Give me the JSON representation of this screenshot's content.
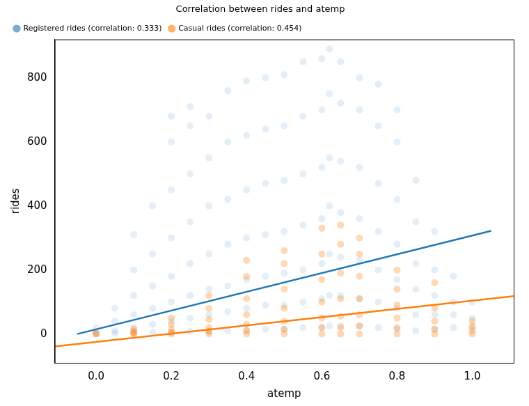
{
  "chart_data": {
    "type": "scatter",
    "title": "Correlation between rides and atemp",
    "x_label": "atemp",
    "y_label": "rides",
    "xlim": [
      -0.11,
      1.11
    ],
    "xticks": [
      {
        "value": 0,
        "label": "0.0"
      },
      0.2,
      0.4,
      0.6,
      0.8,
      {
        "value": 1,
        "label": "1.0"
      }
    ],
    "ylim": [
      -90,
      920
    ],
    "yticks": [
      0,
      200,
      400,
      600,
      800
    ],
    "grid": false,
    "legend": "upper left",
    "series": [
      {
        "name": "Registered rides (correlation: 0.333)",
        "color": "#1f77b4",
        "marker": "circle",
        "x": [
          0.0,
          0.0,
          0.0,
          0.05,
          0.05,
          0.05,
          0.05,
          0.1,
          0.1,
          0.1,
          0.1,
          0.1,
          0.1,
          0.15,
          0.15,
          0.15,
          0.15,
          0.15,
          0.15,
          0.2,
          0.2,
          0.2,
          0.2,
          0.2,
          0.2,
          0.2,
          0.2,
          0.25,
          0.25,
          0.25,
          0.25,
          0.25,
          0.25,
          0.25,
          0.25,
          0.3,
          0.3,
          0.3,
          0.3,
          0.3,
          0.3,
          0.3,
          0.35,
          0.35,
          0.35,
          0.35,
          0.35,
          0.35,
          0.35,
          0.4,
          0.4,
          0.4,
          0.4,
          0.4,
          0.4,
          0.4,
          0.45,
          0.45,
          0.45,
          0.45,
          0.45,
          0.45,
          0.45,
          0.5,
          0.5,
          0.5,
          0.5,
          0.5,
          0.5,
          0.5,
          0.55,
          0.55,
          0.55,
          0.55,
          0.55,
          0.55,
          0.55,
          0.6,
          0.6,
          0.6,
          0.6,
          0.6,
          0.6,
          0.6,
          0.62,
          0.62,
          0.62,
          0.62,
          0.62,
          0.62,
          0.62,
          0.65,
          0.65,
          0.65,
          0.65,
          0.65,
          0.65,
          0.65,
          0.7,
          0.7,
          0.7,
          0.7,
          0.7,
          0.7,
          0.7,
          0.75,
          0.75,
          0.75,
          0.75,
          0.75,
          0.75,
          0.75,
          0.8,
          0.8,
          0.8,
          0.8,
          0.8,
          0.8,
          0.8,
          0.85,
          0.85,
          0.85,
          0.85,
          0.85,
          0.85,
          0.9,
          0.9,
          0.9,
          0.9,
          0.9,
          0.95,
          0.95,
          0.95,
          0.95,
          1.0,
          1.0,
          1.0
        ],
        "values": [
          0,
          5,
          20,
          2,
          10,
          40,
          80,
          3,
          20,
          60,
          120,
          200,
          310,
          5,
          30,
          80,
          150,
          250,
          400,
          5,
          40,
          100,
          180,
          300,
          450,
          600,
          680,
          8,
          50,
          120,
          220,
          350,
          500,
          650,
          710,
          10,
          60,
          140,
          250,
          400,
          550,
          680,
          10,
          70,
          150,
          280,
          420,
          600,
          760,
          12,
          80,
          170,
          300,
          450,
          620,
          790,
          15,
          90,
          180,
          310,
          470,
          640,
          800,
          15,
          90,
          190,
          320,
          480,
          650,
          810,
          20,
          100,
          200,
          340,
          500,
          680,
          850,
          20,
          110,
          220,
          360,
          520,
          700,
          860,
          25,
          120,
          250,
          400,
          550,
          750,
          890,
          25,
          120,
          240,
          380,
          540,
          720,
          850,
          25,
          110,
          230,
          360,
          520,
          700,
          800,
          20,
          100,
          200,
          320,
          470,
          650,
          780,
          15,
          80,
          170,
          280,
          420,
          600,
          700,
          10,
          60,
          140,
          220,
          350,
          480,
          15,
          60,
          120,
          200,
          320,
          20,
          60,
          100,
          180,
          20,
          50,
          100
        ],
        "trend": {
          "x": [
            -0.05,
            1.05
          ],
          "values": [
            0,
            322
          ]
        }
      },
      {
        "name": "Casual rides (correlation: 0.454)",
        "color": "#ff7f0e",
        "marker": "circle",
        "x": [
          0.0,
          0.0,
          0.1,
          0.1,
          0.1,
          0.1,
          0.2,
          0.2,
          0.2,
          0.2,
          0.2,
          0.3,
          0.3,
          0.3,
          0.3,
          0.3,
          0.3,
          0.4,
          0.4,
          0.4,
          0.4,
          0.4,
          0.4,
          0.4,
          0.5,
          0.5,
          0.5,
          0.5,
          0.5,
          0.5,
          0.5,
          0.6,
          0.6,
          0.6,
          0.6,
          0.6,
          0.6,
          0.6,
          0.65,
          0.65,
          0.65,
          0.65,
          0.65,
          0.65,
          0.65,
          0.7,
          0.7,
          0.7,
          0.7,
          0.7,
          0.7,
          0.7,
          0.8,
          0.8,
          0.8,
          0.8,
          0.8,
          0.8,
          0.9,
          0.9,
          0.9,
          0.9,
          0.9,
          1.0,
          1.0,
          1.0,
          1.0
        ],
        "values": [
          0,
          2,
          0,
          3,
          8,
          15,
          0,
          5,
          15,
          30,
          50,
          0,
          8,
          20,
          45,
          80,
          120,
          0,
          10,
          30,
          60,
          110,
          180,
          230,
          0,
          15,
          40,
          80,
          140,
          220,
          260,
          0,
          20,
          50,
          100,
          170,
          250,
          330,
          0,
          20,
          55,
          110,
          190,
          280,
          340,
          0,
          25,
          60,
          110,
          180,
          250,
          300,
          0,
          20,
          50,
          90,
          140,
          200,
          0,
          15,
          40,
          80,
          160,
          0,
          10,
          25,
          40
        ],
        "trend": {
          "x": [
            -0.11,
            1.11
          ],
          "values": [
            -39,
            118
          ]
        }
      }
    ]
  }
}
